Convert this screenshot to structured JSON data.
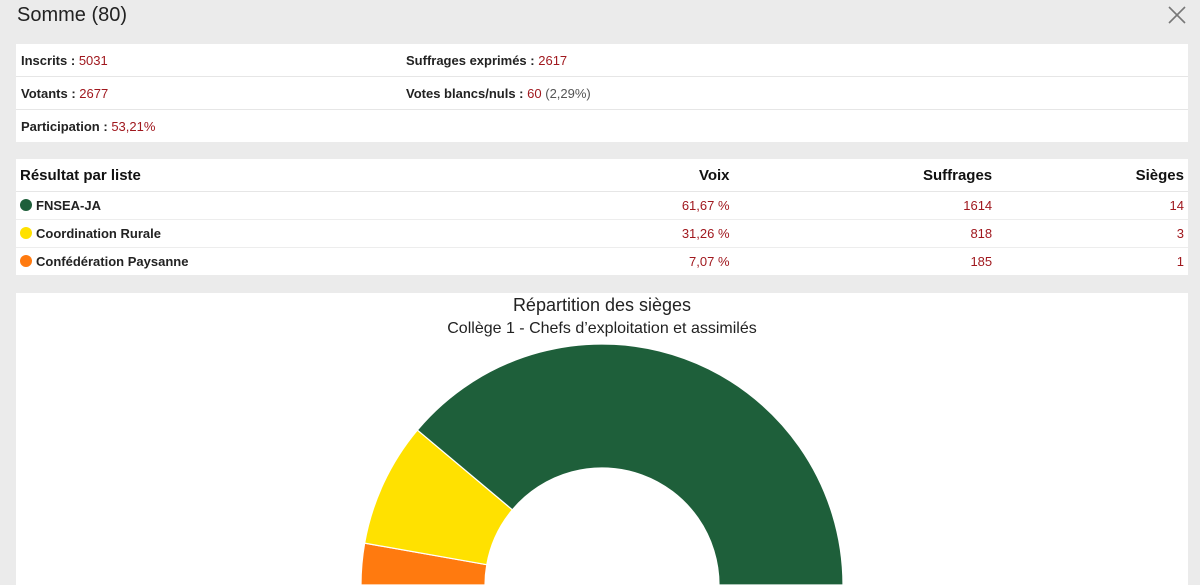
{
  "modal": {
    "title": "Somme (80)",
    "close_icon": "close-icon"
  },
  "stats": {
    "inscrits": {
      "label": "Inscrits :",
      "value": "5031"
    },
    "suffrages_exprimes": {
      "label": "Suffrages exprimés :",
      "value": "2617"
    },
    "votants": {
      "label": "Votants :",
      "value": "2677"
    },
    "votes_blancs_nuls": {
      "label": "Votes blancs/nuls :",
      "value": "60",
      "extra": "(2,29%)"
    },
    "participation": {
      "label": "Participation :",
      "value": "53,21%"
    }
  },
  "results": {
    "headers": {
      "liste": "Résultat par liste",
      "voix": "Voix",
      "suffrages": "Suffrages",
      "sieges": "Sièges"
    },
    "rows": [
      {
        "name": "FNSEA-JA",
        "color": "#1e5f3a",
        "voix": "61,67 %",
        "suffrages": "1614",
        "sieges": "14"
      },
      {
        "name": "Coordination Rurale",
        "color": "#ffe100",
        "voix": "31,26 %",
        "suffrages": "818",
        "sieges": "3"
      },
      {
        "name": "Confédération Paysanne",
        "color": "#ff7a0f",
        "voix": "7,07 %",
        "suffrages": "185",
        "sieges": "1"
      }
    ]
  },
  "chart_data": {
    "type": "pie",
    "style": "semicircle-donut",
    "title": "Répartition des sièges",
    "subtitle": "Collège 1 - Chefs d’exploitation et assimilés",
    "categories": [
      "Confédération Paysanne",
      "Coordination Rurale",
      "FNSEA-JA"
    ],
    "values": [
      1,
      3,
      14
    ],
    "colors": [
      "#ff7a0f",
      "#ffe100",
      "#1e5f3a"
    ]
  }
}
